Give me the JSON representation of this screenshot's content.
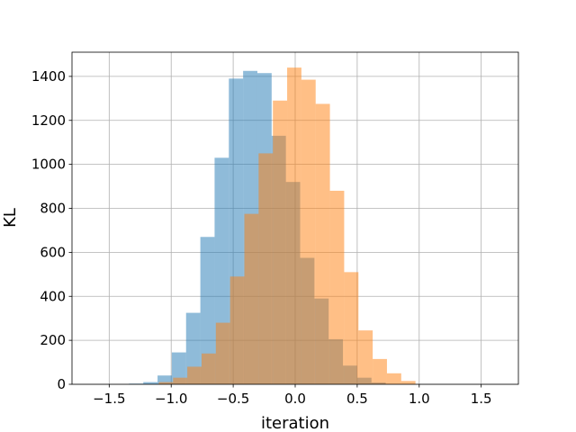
{
  "chart_data": {
    "type": "bar",
    "title": "",
    "xlabel": "iteration",
    "ylabel": "KL",
    "xlim": [
      -1.8,
      1.8
    ],
    "ylim": [
      0,
      1510
    ],
    "grid": true,
    "x_ticks": [
      {
        "value": -1.5,
        "label": "−1.5"
      },
      {
        "value": -1.0,
        "label": "−1.0"
      },
      {
        "value": -0.5,
        "label": "−0.5"
      },
      {
        "value": 0.0,
        "label": "0.0"
      },
      {
        "value": 0.5,
        "label": "0.5"
      },
      {
        "value": 1.0,
        "label": "1.0"
      },
      {
        "value": 1.5,
        "label": "1.5"
      }
    ],
    "y_ticks": [
      {
        "value": 0,
        "label": "0"
      },
      {
        "value": 200,
        "label": "200"
      },
      {
        "value": 400,
        "label": "400"
      },
      {
        "value": 600,
        "label": "600"
      },
      {
        "value": 800,
        "label": "800"
      },
      {
        "value": 1000,
        "label": "1000"
      },
      {
        "value": 1200,
        "label": "1200"
      },
      {
        "value": 1400,
        "label": "1400"
      }
    ],
    "series": [
      {
        "color": "#1f77b4",
        "opacity": 0.5,
        "bin_edges": [
          -1.34,
          -1.225,
          -1.11,
          -0.995,
          -0.88,
          -0.765,
          -0.65,
          -0.535,
          -0.42,
          -0.305,
          -0.19,
          -0.075,
          0.04,
          0.155,
          0.27,
          0.385,
          0.5,
          0.615,
          0.73
        ],
        "counts": [
          3,
          10,
          40,
          145,
          325,
          670,
          1030,
          1390,
          1425,
          1415,
          1130,
          920,
          575,
          390,
          205,
          85,
          30,
          8
        ]
      },
      {
        "color": "#ff7f0e",
        "opacity": 0.5,
        "bin_edges": [
          -1.1,
          -0.985,
          -0.87,
          -0.755,
          -0.64,
          -0.525,
          -0.41,
          -0.295,
          -0.18,
          -0.065,
          0.05,
          0.165,
          0.28,
          0.395,
          0.51,
          0.625,
          0.74,
          0.855,
          0.97
        ],
        "counts": [
          10,
          30,
          80,
          140,
          280,
          490,
          775,
          1050,
          1290,
          1440,
          1385,
          1275,
          880,
          510,
          245,
          115,
          50,
          15
        ]
      }
    ]
  }
}
